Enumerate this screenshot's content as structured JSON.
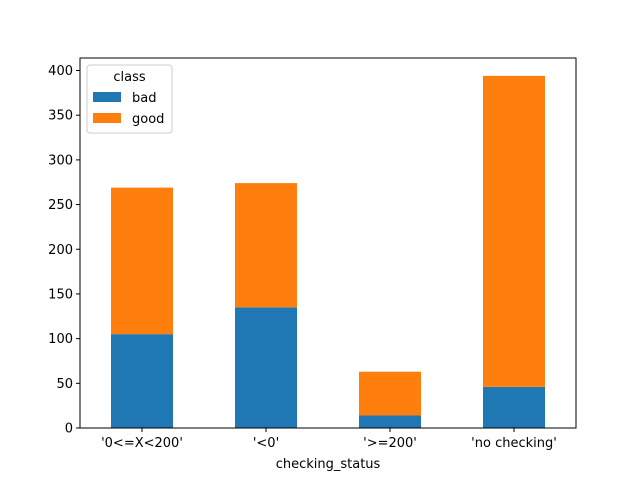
{
  "chart_data": {
    "type": "bar",
    "stacked": true,
    "categories": [
      "'0<=X<200'",
      "'<0'",
      "'>=200'",
      "'no checking'"
    ],
    "series": [
      {
        "name": "bad",
        "color": "#1f77b4",
        "values": [
          105,
          135,
          14,
          46
        ]
      },
      {
        "name": "good",
        "color": "#ff7f0e",
        "values": [
          164,
          139,
          49,
          348
        ]
      }
    ],
    "title": "",
    "xlabel": "checking_status",
    "ylabel": "",
    "ylim": [
      0,
      414
    ],
    "yticks": [
      0,
      50,
      100,
      150,
      200,
      250,
      300,
      350,
      400
    ],
    "grid": false,
    "legend": {
      "title": "class",
      "placement": "top-left"
    }
  }
}
